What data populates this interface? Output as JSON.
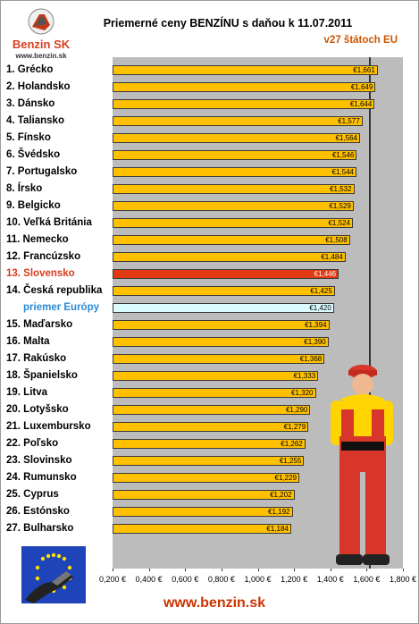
{
  "logo": {
    "name": "Benzin SK",
    "url": "www.benzin.sk"
  },
  "footer_url": "www.benzin.sk",
  "colors": {
    "bar": "#ffc000",
    "highlight": "#e23a12",
    "average": "#dafcff",
    "plot_bg": "#bcbcbc",
    "accent": "#cc3300"
  },
  "chart_data": {
    "type": "bar",
    "orientation": "horizontal",
    "title": "Priemerné ceny BENZÍNU s daňou k 11.07.2011",
    "subtitle": "v27 štátoch EU",
    "xlim": [
      0.2,
      1.8
    ],
    "reference_value": 1.62,
    "x_ticks": [
      "0,200 €",
      "0,400 €",
      "0,600 €",
      "0,800 €",
      "1,000 €",
      "1,200 €",
      "1,400 €",
      "1,600 €",
      "1,800 €"
    ],
    "legend": "none",
    "grid": false,
    "categories": [
      "1. Grécko",
      "2. Holandsko",
      "3. Dánsko",
      "4. Taliansko",
      "5. Fínsko",
      "6. Švédsko",
      "7. Portugalsko",
      "8. Írsko",
      "9. Belgicko",
      "10. Veľká Británia",
      "11. Nemecko",
      "12. Francúzsko",
      "13. Slovensko",
      "14. Česká republika",
      "priemer Európy",
      "15. Maďarsko",
      "16. Malta",
      "17. Rakúsko",
      "18. Španielsko",
      "19. Litva",
      "20. Lotyšsko",
      "21. Luxembursko",
      "22. Poľsko",
      "23. Slovinsko",
      "24. Rumunsko",
      "25. Cyprus",
      "26. Estónsko",
      "27. Bulharsko"
    ],
    "values": [
      1.661,
      1.649,
      1.644,
      1.577,
      1.564,
      1.546,
      1.544,
      1.532,
      1.529,
      1.524,
      1.508,
      1.484,
      1.446,
      1.425,
      1.42,
      1.394,
      1.39,
      1.368,
      1.333,
      1.32,
      1.29,
      1.279,
      1.262,
      1.255,
      1.229,
      1.202,
      1.192,
      1.184
    ],
    "value_labels": [
      "€1,661",
      "€1,649",
      "€1,644",
      "€1,577",
      "€1,564",
      "€1,546",
      "€1,544",
      "€1,532",
      "€1,529",
      "€1,524",
      "€1,508",
      "€1,484",
      "€1,446",
      "€1,425",
      "€1,420",
      "€1,394",
      "€1,390",
      "€1,368",
      "€1,333",
      "€1,320",
      "€1,290",
      "€1,279",
      "€1,262",
      "€1,255",
      "€1,229",
      "€1,202",
      "€1,192",
      "€1,184"
    ],
    "highlight_index": 12,
    "average_index": 14
  }
}
